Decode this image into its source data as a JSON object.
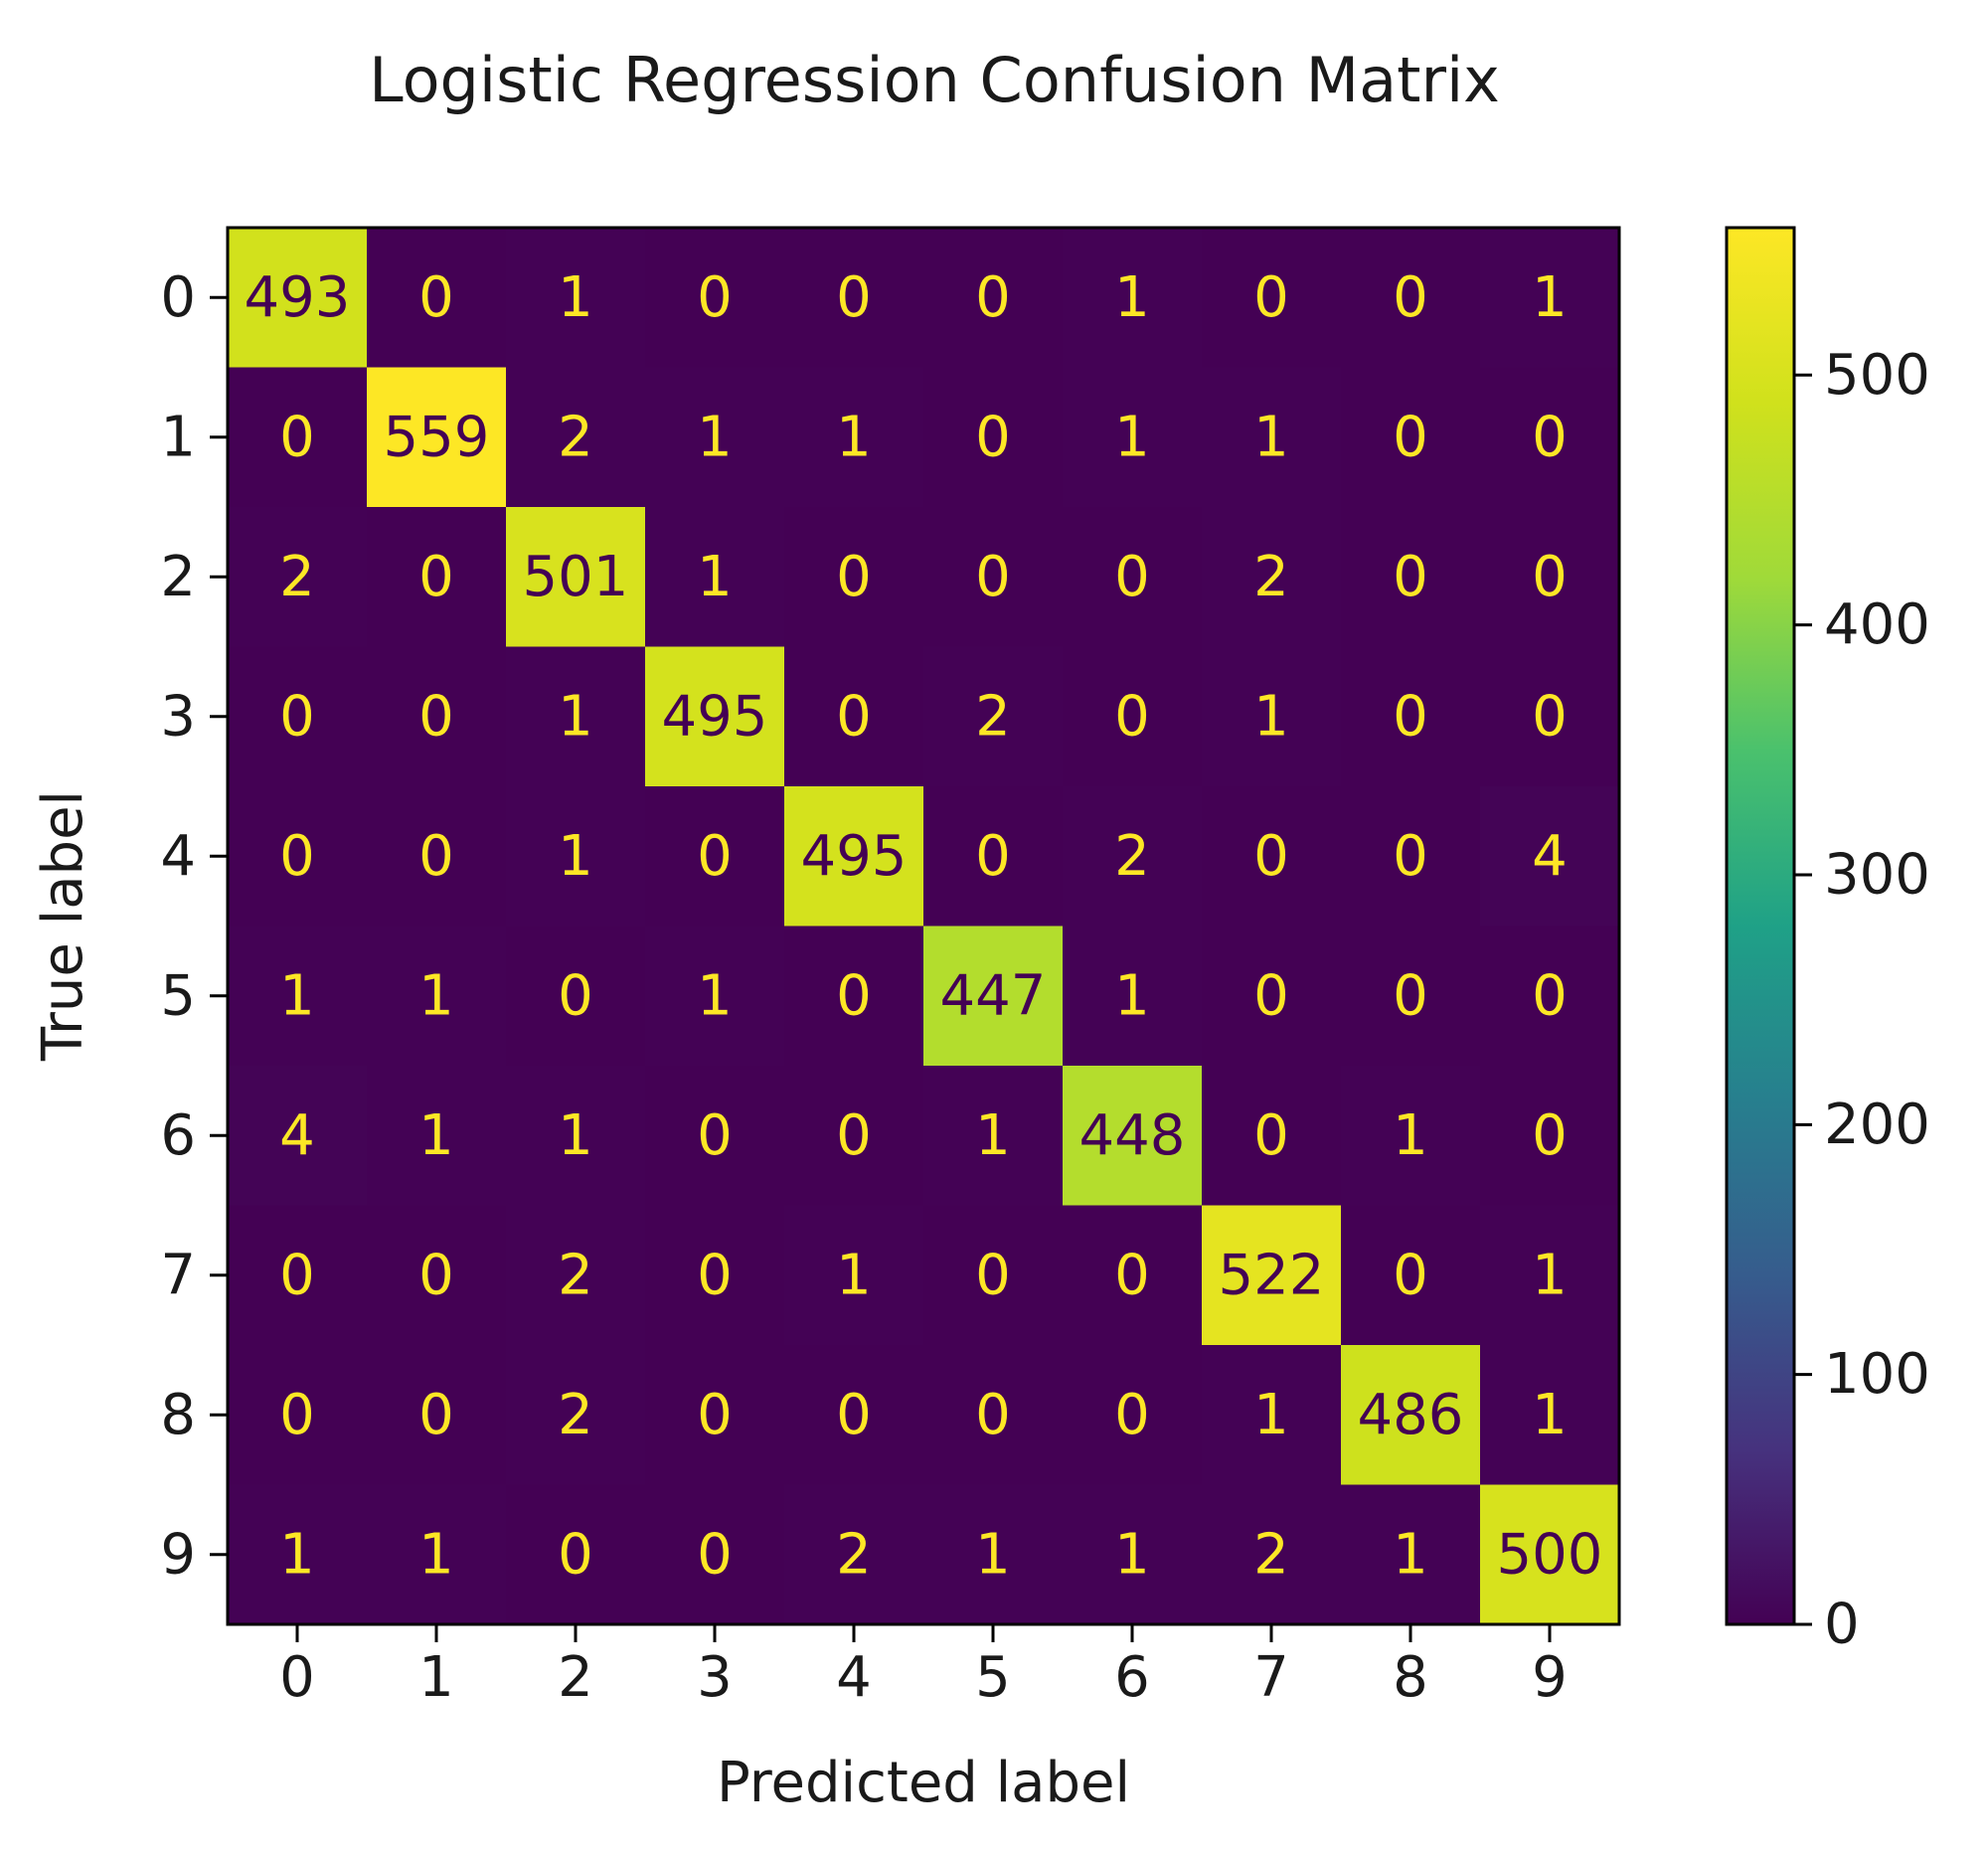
{
  "chart_data": {
    "type": "heatmap",
    "title": "Logistic Regression Confusion Matrix",
    "xlabel": "Predicted label",
    "ylabel": "True label",
    "x_categories": [
      "0",
      "1",
      "2",
      "3",
      "4",
      "5",
      "6",
      "7",
      "8",
      "9"
    ],
    "y_categories": [
      "0",
      "1",
      "2",
      "3",
      "4",
      "5",
      "6",
      "7",
      "8",
      "9"
    ],
    "matrix": [
      [
        493,
        0,
        1,
        0,
        0,
        0,
        1,
        0,
        0,
        1
      ],
      [
        0,
        559,
        2,
        1,
        1,
        0,
        1,
        1,
        0,
        0
      ],
      [
        2,
        0,
        501,
        1,
        0,
        0,
        0,
        2,
        0,
        0
      ],
      [
        0,
        0,
        1,
        495,
        0,
        2,
        0,
        1,
        0,
        0
      ],
      [
        0,
        0,
        1,
        0,
        495,
        0,
        2,
        0,
        0,
        4
      ],
      [
        1,
        1,
        0,
        1,
        0,
        447,
        1,
        0,
        0,
        0
      ],
      [
        4,
        1,
        1,
        0,
        0,
        1,
        448,
        0,
        1,
        0
      ],
      [
        0,
        0,
        2,
        0,
        1,
        0,
        0,
        522,
        0,
        1
      ],
      [
        0,
        0,
        2,
        0,
        0,
        0,
        0,
        1,
        486,
        1
      ],
      [
        1,
        1,
        0,
        0,
        2,
        1,
        1,
        2,
        1,
        500
      ]
    ],
    "colormap": "viridis",
    "colorbar": {
      "range": [
        0,
        559
      ],
      "ticks": [
        0,
        100,
        200,
        300,
        400,
        500
      ]
    },
    "legend": "none",
    "grid": false
  }
}
